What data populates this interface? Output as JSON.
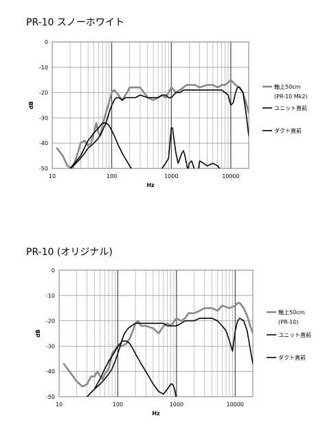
{
  "chart_data": [
    {
      "type": "line",
      "title": "PR-10 スノーホワイト",
      "xlabel": "Hz",
      "ylabel": "dB",
      "xscale": "log",
      "xlim": [
        10,
        20000
      ],
      "ylim": [
        -50,
        0
      ],
      "x_ticks": [
        "10",
        "100",
        "1000",
        "10000"
      ],
      "y_ticks": [
        "0",
        "-10",
        "-20",
        "-30",
        "-40",
        "-50"
      ],
      "grid": true,
      "legend_position": "right",
      "series": [
        {
          "name": "軸上50cm",
          "name_line2": "(PR-10 Mk2)",
          "color": "#888888",
          "x": [
            12,
            15,
            18,
            22,
            26,
            30,
            35,
            40,
            45,
            50,
            55,
            60,
            65,
            70,
            80,
            90,
            100,
            110,
            130,
            150,
            180,
            200,
            250,
            300,
            400,
            500,
            600,
            700,
            800,
            900,
            1000,
            1100,
            1200,
            1400,
            1600,
            1800,
            2000,
            2500,
            3000,
            4000,
            5000,
            6000,
            7000,
            8000,
            9000,
            10000,
            11000,
            12000,
            14000,
            16000,
            18000,
            20000
          ],
          "y": [
            -42,
            -45,
            -49,
            -50,
            -45,
            -40,
            -39,
            -41,
            -40,
            -36,
            -32,
            -36,
            -37,
            -33,
            -28,
            -24,
            -20,
            -19,
            -21,
            -23,
            -20,
            -18,
            -18,
            -18,
            -22,
            -23,
            -22,
            -21,
            -22,
            -20,
            -18,
            -19,
            -20,
            -19,
            -18,
            -17,
            -17,
            -17,
            -18,
            -17,
            -17,
            -18,
            -17,
            -17,
            -16,
            -15,
            -16,
            -17,
            -18,
            -20,
            -24,
            -28
          ]
        },
        {
          "name": "ユニット直前",
          "color": "#000000",
          "x": [
            20,
            25,
            30,
            35,
            40,
            50,
            60,
            70,
            80,
            90,
            100,
            110,
            120,
            130,
            150,
            170,
            200,
            250,
            300,
            400,
            500,
            600,
            700,
            800,
            900,
            1000,
            1200,
            1400,
            1600,
            2000,
            2500,
            3000,
            4000,
            5000,
            6000,
            7000,
            8000,
            9000,
            10000,
            11000,
            12000,
            13000,
            14000,
            16000,
            18000,
            20000
          ],
          "y": [
            -50,
            -48,
            -46,
            -44,
            -42,
            -40,
            -38,
            -35,
            -32,
            -28,
            -25,
            -23,
            -22,
            -22,
            -23,
            -22,
            -22,
            -22,
            -21,
            -22,
            -22,
            -22,
            -21,
            -21,
            -22,
            -22,
            -20,
            -20,
            -19,
            -19,
            -19,
            -19,
            -19,
            -19,
            -19,
            -19,
            -20,
            -21,
            -25,
            -24,
            -20,
            -18,
            -18,
            -20,
            -28,
            -37
          ]
        },
        {
          "name": "ダクト直前",
          "color": "#000000",
          "x": [
            20,
            30,
            40,
            50,
            60,
            70,
            80,
            90,
            100,
            110,
            130,
            150,
            200,
            300,
            400,
            500,
            600,
            700,
            800,
            900,
            950,
            1000,
            1050,
            1100,
            1200,
            1300,
            1400,
            1500,
            1600,
            1700,
            1800,
            1900,
            2000,
            2200,
            2500,
            2800,
            3000,
            3500,
            4000,
            5000,
            6000,
            7000
          ],
          "y": [
            -50,
            -45,
            -39,
            -36,
            -34,
            -32,
            -32,
            -33,
            -35,
            -37,
            -41,
            -44,
            -49,
            -55,
            -58,
            -55,
            -52,
            -50,
            -48,
            -46,
            -40,
            -34,
            -34,
            -38,
            -44,
            -48,
            -46,
            -44,
            -43,
            -45,
            -48,
            -51,
            -48,
            -47,
            -51,
            -52,
            -47,
            -48,
            -49,
            -48,
            -49,
            -51
          ]
        }
      ]
    },
    {
      "type": "line",
      "title": "PR-10 (オリジナル)",
      "xlabel": "Hz",
      "ylabel": "dB",
      "xscale": "log",
      "xlim": [
        10,
        20000
      ],
      "ylim": [
        -50,
        0
      ],
      "x_ticks": [
        "10",
        "100",
        "1000",
        "10000"
      ],
      "y_ticks": [
        "0",
        "-10",
        "-20",
        "-30",
        "-40",
        "-50"
      ],
      "grid": true,
      "legend_position": "right",
      "series": [
        {
          "name": "軸上50cm",
          "name_line2": "(PR-10)",
          "color": "#888888",
          "x": [
            12,
            15,
            20,
            25,
            30,
            35,
            40,
            45,
            50,
            55,
            60,
            70,
            80,
            100,
            120,
            140,
            160,
            180,
            200,
            220,
            250,
            300,
            400,
            500,
            600,
            700,
            800,
            1000,
            1200,
            1400,
            1600,
            2000,
            2500,
            3000,
            4000,
            5000,
            6000,
            8000,
            10000,
            11000,
            12000,
            14000,
            16000,
            18000,
            20000
          ],
          "y": [
            -37,
            -40,
            -44,
            -46,
            -45,
            -42,
            -42,
            -40,
            -42,
            -43,
            -41,
            -39,
            -33,
            -30,
            -30,
            -29,
            -27,
            -24,
            -21,
            -20,
            -22,
            -22,
            -23,
            -25,
            -22,
            -21,
            -22,
            -19,
            -20,
            -19,
            -17,
            -17,
            -16,
            -15,
            -15,
            -16,
            -14,
            -15,
            -14,
            -13,
            -13,
            -15,
            -18,
            -22,
            -25
          ]
        },
        {
          "name": "ユニット直前",
          "color": "#000000",
          "x": [
            30,
            40,
            50,
            60,
            70,
            80,
            90,
            100,
            110,
            120,
            130,
            140,
            150,
            170,
            200,
            250,
            300,
            400,
            500,
            600,
            700,
            800,
            900,
            1000,
            1200,
            1400,
            1600,
            2000,
            2500,
            3000,
            4000,
            5000,
            6000,
            7000,
            8000,
            9000,
            10000,
            11000,
            12000,
            14000,
            16000,
            18000,
            20000
          ],
          "y": [
            -50,
            -47,
            -45,
            -43,
            -41,
            -39,
            -36,
            -33,
            -30,
            -27,
            -25,
            -24,
            -23,
            -22,
            -21,
            -21,
            -21,
            -21,
            -21,
            -21,
            -22,
            -22,
            -22,
            -22,
            -21,
            -20,
            -20,
            -20,
            -19,
            -19,
            -19,
            -20,
            -22,
            -24,
            -28,
            -32,
            -24,
            -20,
            -19,
            -20,
            -24,
            -31,
            -37
          ]
        },
        {
          "name": "ダクト直前",
          "color": "#000000",
          "x": [
            40,
            50,
            60,
            70,
            80,
            90,
            100,
            120,
            140,
            160,
            180,
            200,
            250,
            300,
            400,
            500,
            600,
            700,
            800,
            850,
            900,
            950,
            1000,
            1050,
            1100,
            1500,
            1700,
            1800
          ],
          "y": [
            -47,
            -43,
            -39,
            -36,
            -34,
            -32,
            -30,
            -28,
            -28,
            -29,
            -31,
            -33,
            -37,
            -40,
            -45,
            -48,
            -49,
            -47,
            -45,
            -45,
            -46,
            -48,
            -52,
            -56,
            -58,
            -52,
            -51,
            -52
          ]
        }
      ]
    }
  ]
}
